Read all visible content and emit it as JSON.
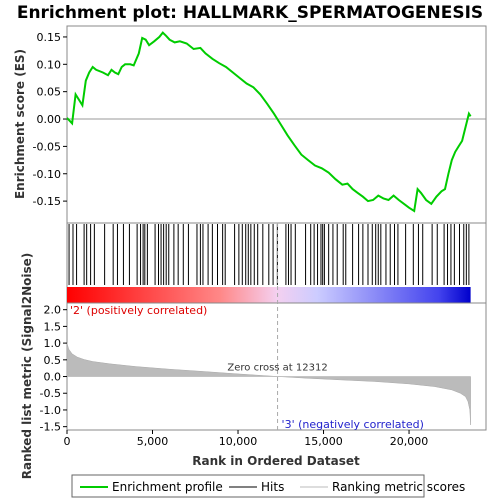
{
  "chart_data": {
    "type": "line",
    "title": "Enrichment plot: HALLMARK_SPERMATOGENESIS",
    "enrichment_panel": {
      "ylabel": "Enrichment score (ES)",
      "ylim": [
        -0.19,
        0.17
      ],
      "yticks": [
        "0.15",
        "0.10",
        "0.05",
        "0.00",
        "-0.05",
        "-0.10",
        "-0.15"
      ],
      "series": [
        {
          "name": "Enrichment profile",
          "color": "#00cc00",
          "x": [
            0,
            300,
            500,
            900,
            1100,
            1300,
            1500,
            1700,
            2100,
            2400,
            2600,
            2800,
            3000,
            3200,
            3400,
            3700,
            3900,
            4200,
            4400,
            4600,
            4800,
            5100,
            5400,
            5600,
            5800,
            6000,
            6300,
            6600,
            7000,
            7400,
            7800,
            8100,
            8500,
            8900,
            9300,
            9700,
            10100,
            10500,
            10900,
            11300,
            11700,
            12100,
            12500,
            12900,
            13300,
            13700,
            14100,
            14500,
            14900,
            15300,
            15700,
            16100,
            16400,
            16700,
            17000,
            17300,
            17600,
            17900,
            18200,
            18500,
            18800,
            19100,
            19400,
            19700,
            20000,
            20300,
            20500,
            20700,
            21000,
            21300,
            21600,
            21900,
            22100,
            22300,
            22500,
            22700,
            22900,
            23100,
            23300,
            23500,
            23600
          ],
          "values": [
            0.002,
            -0.008,
            0.045,
            0.025,
            0.07,
            0.085,
            0.095,
            0.09,
            0.085,
            0.08,
            0.09,
            0.085,
            0.082,
            0.095,
            0.1,
            0.1,
            0.098,
            0.12,
            0.148,
            0.145,
            0.135,
            0.142,
            0.15,
            0.158,
            0.152,
            0.145,
            0.14,
            0.142,
            0.138,
            0.128,
            0.13,
            0.12,
            0.11,
            0.102,
            0.095,
            0.085,
            0.075,
            0.065,
            0.058,
            0.045,
            0.028,
            0.01,
            -0.01,
            -0.03,
            -0.048,
            -0.065,
            -0.075,
            -0.085,
            -0.09,
            -0.098,
            -0.11,
            -0.12,
            -0.118,
            -0.128,
            -0.135,
            -0.142,
            -0.15,
            -0.148,
            -0.14,
            -0.145,
            -0.148,
            -0.14,
            -0.148,
            -0.155,
            -0.162,
            -0.168,
            -0.128,
            -0.135,
            -0.148,
            -0.155,
            -0.142,
            -0.132,
            -0.128,
            -0.1,
            -0.075,
            -0.06,
            -0.05,
            -0.04,
            -0.015,
            0.01,
            0.005
          ]
        }
      ]
    },
    "hits_panel": {
      "positions": [
        120,
        350,
        560,
        1000,
        1150,
        1380,
        1600,
        2200,
        2700,
        2950,
        3300,
        3650,
        4100,
        4300,
        4450,
        4550,
        4700,
        5150,
        5350,
        5500,
        5650,
        5800,
        5950,
        6250,
        6500,
        6800,
        7100,
        7600,
        7800,
        7950,
        8250,
        8500,
        8800,
        9100,
        9250,
        9800,
        10050,
        10250,
        10450,
        10600,
        10750,
        10950,
        11150,
        11450,
        11800,
        12050,
        12300,
        12800,
        12950,
        13100,
        13350,
        13950,
        14250,
        14450,
        14650,
        14850,
        14950,
        15050,
        15300,
        15550,
        15800,
        16150,
        16300,
        16700,
        17050,
        17300,
        17600,
        17850,
        18050,
        18200,
        18350,
        18650,
        18900,
        19150,
        19350,
        19800,
        20250,
        20550,
        20800,
        21350,
        21650,
        22050,
        22250,
        22450,
        22650,
        22950,
        23200,
        23350,
        23500
      ]
    },
    "ranked_panel": {
      "ylabel": "Ranked list metric (Signal2Noise)",
      "xlabel": "Rank in Ordered Dataset",
      "ylim": [
        -1.6,
        2.2
      ],
      "yticks": [
        "2.0",
        "1.5",
        "1.0",
        "0.5",
        "0.0",
        "-0.5",
        "-1.0",
        "-1.5"
      ],
      "xticks": [
        "0",
        "5,000",
        "10,000",
        "15,000",
        "20,000"
      ],
      "x_values": [
        0,
        5000,
        10000,
        15000,
        20000
      ],
      "xlim": [
        0,
        24500
      ],
      "n_genes": 23600,
      "zero_cross": 12312,
      "zero_cross_label": "Zero cross at 12312",
      "pos_label": "'2' (positively correlated)",
      "neg_label": "'3' (negatively correlated)",
      "metric_x": [
        0,
        100,
        300,
        600,
        1000,
        1500,
        2500,
        4000,
        6000,
        8000,
        10000,
        12312,
        14000,
        16000,
        18000,
        20000,
        21500,
        22500,
        23000,
        23300,
        23450,
        23550,
        23600
      ],
      "metric_y": [
        1.0,
        0.82,
        0.68,
        0.58,
        0.51,
        0.45,
        0.38,
        0.3,
        0.22,
        0.15,
        0.08,
        0.0,
        -0.05,
        -0.1,
        -0.15,
        -0.22,
        -0.3,
        -0.4,
        -0.5,
        -0.6,
        -0.75,
        -1.0,
        -1.45
      ]
    },
    "legend": {
      "items": [
        "Enrichment profile",
        "Hits",
        "Ranking metric scores"
      ]
    }
  }
}
